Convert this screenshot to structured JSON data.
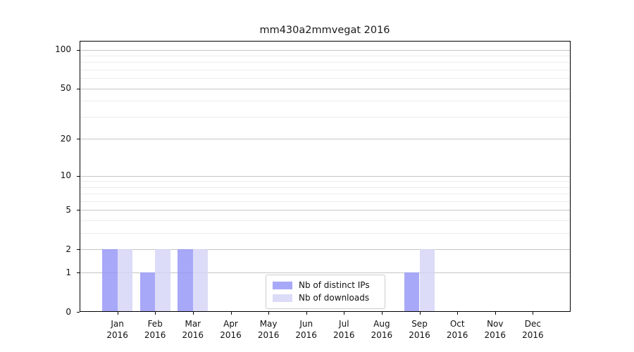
{
  "title": "mm430a2mmvegat 2016",
  "chart_data": {
    "type": "bar",
    "title": "mm430a2mmvegat 2016",
    "categories": [
      [
        "Jan",
        "2016"
      ],
      [
        "Feb",
        "2016"
      ],
      [
        "Mar",
        "2016"
      ],
      [
        "Apr",
        "2016"
      ],
      [
        "May",
        "2016"
      ],
      [
        "Jun",
        "2016"
      ],
      [
        "Jul",
        "2016"
      ],
      [
        "Aug",
        "2016"
      ],
      [
        "Sep",
        "2016"
      ],
      [
        "Oct",
        "2016"
      ],
      [
        "Nov",
        "2016"
      ],
      [
        "Dec",
        "2016"
      ]
    ],
    "series": [
      {
        "name": "Nb of distinct IPs",
        "color": "rgba(146,146,246,0.8)",
        "values": [
          2,
          1,
          2,
          0,
          0,
          0,
          0,
          0,
          1,
          0,
          0,
          0
        ]
      },
      {
        "name": "Nb of downloads",
        "color": "rgba(211,211,246,0.8)",
        "values": [
          2,
          2,
          2,
          0,
          0,
          0,
          0,
          0,
          2,
          0,
          0,
          0
        ]
      }
    ],
    "xlabel": "",
    "ylabel": "",
    "yscale": "log1p",
    "ylim": [
      0,
      117
    ],
    "yticks": [
      0,
      1,
      2,
      5,
      10,
      20,
      50,
      100
    ],
    "minor_gridlines": [
      3,
      4,
      6,
      7,
      8,
      9,
      30,
      40,
      60,
      70,
      80,
      90
    ],
    "grid": true,
    "legend_position": "lower center",
    "colors": {
      "major_grid": "#c6c6c6",
      "minor_grid": "#ececec",
      "axis": "#000000",
      "background": "#ffffff"
    }
  }
}
